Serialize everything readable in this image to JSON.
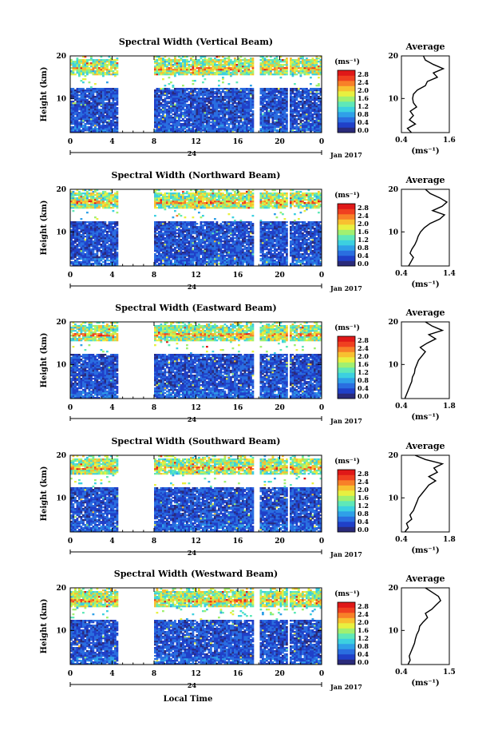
{
  "figure": {
    "date_label": "Jan 2017",
    "day_label": "24",
    "xlabel": "Local Time",
    "colorbar_unit": "(ms⁻¹)",
    "avg_unit": "(ms⁻¹)"
  },
  "colormap": [
    "#2a2a7a",
    "#2040c8",
    "#2a6ee0",
    "#2fa0e8",
    "#3cd0e0",
    "#5fe8b8",
    "#a0f070",
    "#e8f040",
    "#f8c030",
    "#f88028",
    "#f04020",
    "#e01818"
  ],
  "chart_data": [
    {
      "type": "heatmap",
      "title": "Spectral Width (Vertical Beam)",
      "xlabel": "Local Time",
      "ylabel": "Height (km)",
      "xlim": [
        0,
        24
      ],
      "ylim": [
        2,
        20
      ],
      "xticks": [
        "0",
        "4",
        "8",
        "12",
        "16",
        "20",
        "0"
      ],
      "yticks": [
        "10",
        "20"
      ],
      "colorbar": {
        "label": "(ms⁻¹)",
        "range": [
          0.0,
          2.8
        ],
        "ticks": [
          "2.8",
          "2.4",
          "2.0",
          "1.6",
          "1.2",
          "0.8",
          "0.4",
          "0.0"
        ]
      },
      "gaps": [
        [
          4.5,
          8.0
        ],
        [
          17.6,
          18.0
        ],
        [
          20.7,
          21.0
        ]
      ],
      "average_profile": {
        "title": "Average",
        "xlabel": "(ms⁻¹)",
        "xlim": [
          0.4,
          1.6
        ],
        "xticks": [
          "0.4",
          "1.6"
        ],
        "yticks": [
          "10",
          "20"
        ],
        "height": [
          2,
          3,
          4,
          5,
          6,
          7,
          8,
          9,
          10,
          11,
          12,
          13,
          14,
          15,
          16,
          17,
          18,
          19,
          20
        ],
        "value": [
          0.65,
          0.55,
          0.75,
          0.6,
          0.7,
          0.62,
          0.78,
          0.7,
          0.68,
          0.7,
          0.8,
          1.0,
          1.05,
          1.3,
          1.2,
          1.45,
          1.2,
          1.0,
          0.95
        ]
      }
    },
    {
      "type": "heatmap",
      "title": "Spectral Width (Northward Beam)",
      "xlabel": "Local Time",
      "ylabel": "Height (km)",
      "xlim": [
        0,
        24
      ],
      "ylim": [
        2,
        20
      ],
      "xticks": [
        "0",
        "4",
        "8",
        "12",
        "16",
        "20",
        "0"
      ],
      "yticks": [
        "10",
        "20"
      ],
      "colorbar": {
        "label": "(ms⁻¹)",
        "range": [
          0.0,
          2.8
        ],
        "ticks": [
          "2.8",
          "2.4",
          "2.0",
          "1.6",
          "1.2",
          "0.8",
          "0.4",
          "0.0"
        ]
      },
      "gaps": [
        [
          4.5,
          8.0
        ],
        [
          17.6,
          18.0
        ],
        [
          20.7,
          21.0
        ]
      ],
      "average_profile": {
        "title": "Average",
        "xlabel": "(ms⁻¹)",
        "xlim": [
          0.4,
          1.4
        ],
        "xticks": [
          "0.4",
          "1.4"
        ],
        "yticks": [
          "10",
          "20"
        ],
        "height": [
          2,
          3,
          4,
          5,
          6,
          7,
          8,
          9,
          10,
          11,
          12,
          13,
          14,
          15,
          16,
          17,
          18,
          19,
          20
        ],
        "value": [
          0.55,
          0.6,
          0.65,
          0.58,
          0.62,
          0.68,
          0.72,
          0.75,
          0.8,
          0.88,
          1.0,
          1.2,
          1.3,
          1.05,
          1.25,
          1.35,
          1.2,
          1.0,
          0.9
        ]
      }
    },
    {
      "type": "heatmap",
      "title": "Spectral Width (Eastward Beam)",
      "xlabel": "Local Time",
      "ylabel": "Height (km)",
      "xlim": [
        0,
        24
      ],
      "ylim": [
        2,
        20
      ],
      "xticks": [
        "0",
        "4",
        "8",
        "12",
        "16",
        "20",
        "0"
      ],
      "yticks": [
        "10",
        "20"
      ],
      "colorbar": {
        "label": "(ms⁻¹)",
        "range": [
          0.0,
          2.8
        ],
        "ticks": [
          "2.8",
          "2.4",
          "2.0",
          "1.6",
          "1.2",
          "0.8",
          "0.4",
          "0.0"
        ]
      },
      "gaps": [
        [
          4.5,
          8.0
        ],
        [
          17.6,
          18.0
        ],
        [
          20.7,
          21.0
        ]
      ],
      "average_profile": {
        "title": "Average",
        "xlabel": "(ms⁻¹)",
        "xlim": [
          0.4,
          1.8
        ],
        "xticks": [
          "0.4",
          "1.8"
        ],
        "yticks": [
          "10",
          "20"
        ],
        "height": [
          2,
          3,
          4,
          5,
          6,
          7,
          8,
          9,
          10,
          11,
          12,
          13,
          14,
          15,
          16,
          17,
          18,
          19,
          20
        ],
        "value": [
          0.5,
          0.55,
          0.6,
          0.65,
          0.7,
          0.72,
          0.78,
          0.8,
          0.85,
          0.9,
          1.0,
          1.1,
          0.95,
          1.15,
          1.4,
          1.2,
          1.6,
          1.3,
          1.1
        ]
      }
    },
    {
      "type": "heatmap",
      "title": "Spectral Width (Southward Beam)",
      "xlabel": "Local Time",
      "ylabel": "Height (km)",
      "xlim": [
        0,
        24
      ],
      "ylim": [
        2,
        20
      ],
      "xticks": [
        "0",
        "4",
        "8",
        "12",
        "16",
        "20",
        "0"
      ],
      "yticks": [
        "10",
        "20"
      ],
      "colorbar": {
        "label": "(ms⁻¹)",
        "range": [
          0.0,
          2.8
        ],
        "ticks": [
          "2.8",
          "2.4",
          "2.0",
          "1.6",
          "1.2",
          "0.8",
          "0.4",
          "0.0"
        ]
      },
      "gaps": [
        [
          4.5,
          8.0
        ],
        [
          17.6,
          18.0
        ],
        [
          20.7,
          21.0
        ]
      ],
      "average_profile": {
        "title": "Average",
        "xlabel": "(ms⁻¹)",
        "xlim": [
          0.4,
          1.8
        ],
        "xticks": [
          "0.4",
          "1.8"
        ],
        "yticks": [
          "10",
          "20"
        ],
        "height": [
          2,
          3,
          4,
          5,
          6,
          7,
          8,
          9,
          10,
          11,
          12,
          13,
          14,
          15,
          16,
          17,
          18,
          19,
          20
        ],
        "value": [
          0.5,
          0.6,
          0.55,
          0.7,
          0.65,
          0.75,
          0.8,
          0.85,
          0.9,
          1.0,
          1.1,
          1.2,
          1.4,
          1.2,
          1.45,
          1.35,
          1.6,
          1.1,
          0.8
        ]
      }
    },
    {
      "type": "heatmap",
      "title": "Spectral Width (Westward Beam)",
      "xlabel": "Local Time",
      "ylabel": "Height (km)",
      "xlim": [
        0,
        24
      ],
      "ylim": [
        2,
        20
      ],
      "xticks": [
        "0",
        "4",
        "8",
        "12",
        "16",
        "20",
        "0"
      ],
      "yticks": [
        "10",
        "20"
      ],
      "colorbar": {
        "label": "(ms⁻¹)",
        "range": [
          0.0,
          2.8
        ],
        "ticks": [
          "2.8",
          "2.4",
          "2.0",
          "1.6",
          "1.2",
          "0.8",
          "0.4",
          "0.0"
        ]
      },
      "gaps": [
        [
          4.5,
          8.0
        ],
        [
          17.6,
          18.0
        ],
        [
          20.7,
          21.0
        ]
      ],
      "average_profile": {
        "title": "Average",
        "xlabel": "(ms⁻¹)",
        "xlim": [
          0.4,
          1.5
        ],
        "xticks": [
          "0.4",
          "1.5"
        ],
        "yticks": [
          "10",
          "20"
        ],
        "height": [
          2,
          3,
          4,
          5,
          6,
          7,
          8,
          9,
          10,
          11,
          12,
          13,
          14,
          15,
          16,
          17,
          18,
          19,
          20
        ],
        "value": [
          0.55,
          0.6,
          0.58,
          0.62,
          0.66,
          0.7,
          0.72,
          0.75,
          0.8,
          0.82,
          0.9,
          1.0,
          0.95,
          1.1,
          1.2,
          1.3,
          1.25,
          1.1,
          0.95
        ]
      }
    }
  ]
}
